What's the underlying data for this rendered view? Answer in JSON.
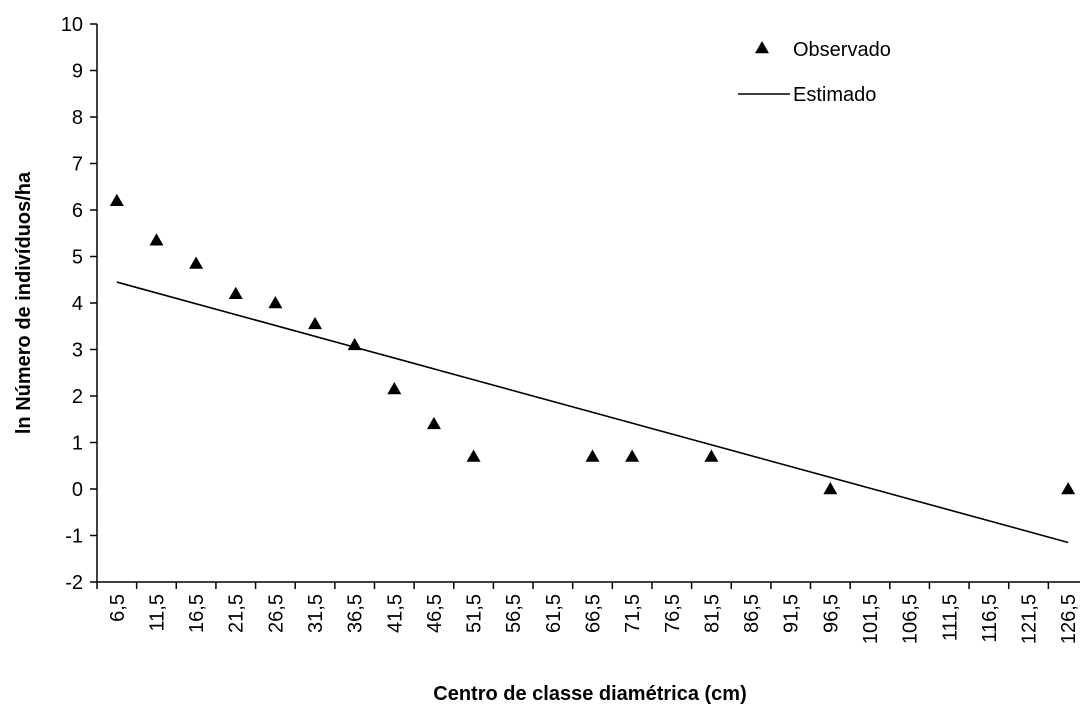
{
  "chart_data": {
    "type": "scatter",
    "title": "",
    "xlabel": "Centro de classe diamétrica (cm)",
    "ylabel": "ln Número de indivíduos/ha",
    "categories": [
      "6,5",
      "11,5",
      "16,5",
      "21,5",
      "26,5",
      "31,5",
      "36,5",
      "41,5",
      "46,5",
      "51,5",
      "56,5",
      "61,5",
      "66,5",
      "71,5",
      "76,5",
      "81,5",
      "86,5",
      "91,5",
      "96,5",
      "101,5",
      "106,5",
      "111,5",
      "116,5",
      "121,5",
      "126,5"
    ],
    "y_ticks": [
      "10",
      "9",
      "8",
      "7",
      "6",
      "5",
      "4",
      "3",
      "2",
      "1",
      "0",
      "-1",
      "-2"
    ],
    "ylim": [
      -2,
      10
    ],
    "grid": false,
    "legend_position": "top-right",
    "series": [
      {
        "name": "Observado",
        "kind": "points",
        "marker": "triangle",
        "x": [
          6.5,
          11.5,
          16.5,
          21.5,
          26.5,
          31.5,
          36.5,
          41.5,
          46.5,
          51.5,
          66.5,
          71.5,
          81.5,
          96.5,
          126.5
        ],
        "values": [
          6.2,
          5.35,
          4.85,
          4.2,
          4.0,
          3.55,
          3.1,
          2.15,
          1.4,
          0.7,
          0.7,
          0.7,
          0.7,
          0.0,
          0.0
        ]
      },
      {
        "name": "Estimado",
        "kind": "line",
        "x": [
          6.5,
          51.5,
          126.5
        ],
        "values": [
          4.45,
          2.35,
          -1.15
        ]
      }
    ],
    "colors": {
      "axis": "#000000",
      "marker": "#000000",
      "line": "#000000"
    }
  }
}
